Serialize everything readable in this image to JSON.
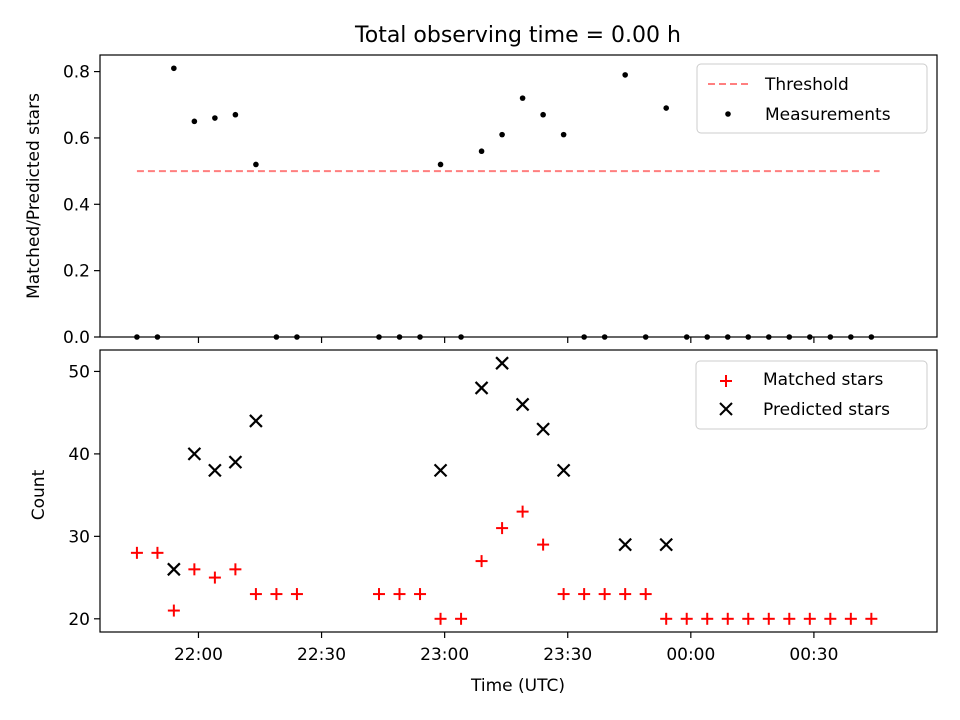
{
  "chart_data": [
    {
      "type": "scatter",
      "title": "Total observing time = 0.00 h",
      "ylabel": "Matched/Predicted stars",
      "ylim": [
        0,
        0.85
      ],
      "yticks": [
        "0.0",
        "0.2",
        "0.4",
        "0.6",
        "0.8"
      ],
      "xlim": [
        "21:36",
        "01:00"
      ],
      "legend": {
        "placement": "top-right",
        "entries": [
          "Threshold",
          "Measurements"
        ]
      },
      "colors": {
        "threshold": "#ff7f7f",
        "measurements": "#000000"
      },
      "threshold": {
        "name": "Threshold",
        "y": 0.5,
        "x_start": "21:45",
        "x_end": "00:46"
      },
      "series": [
        {
          "name": "Measurements",
          "marker": "dot",
          "points": [
            {
              "x": "21:45",
              "y": 0.0
            },
            {
              "x": "21:50",
              "y": 0.0
            },
            {
              "x": "21:54",
              "y": 0.81
            },
            {
              "x": "21:59",
              "y": 0.65
            },
            {
              "x": "22:04",
              "y": 0.66
            },
            {
              "x": "22:09",
              "y": 0.67
            },
            {
              "x": "22:14",
              "y": 0.52
            },
            {
              "x": "22:19",
              "y": 0.0
            },
            {
              "x": "22:24",
              "y": 0.0
            },
            {
              "x": "22:44",
              "y": 0.0
            },
            {
              "x": "22:49",
              "y": 0.0
            },
            {
              "x": "22:54",
              "y": 0.0
            },
            {
              "x": "22:59",
              "y": 0.52
            },
            {
              "x": "23:04",
              "y": 0.0
            },
            {
              "x": "23:09",
              "y": 0.56
            },
            {
              "x": "23:14",
              "y": 0.61
            },
            {
              "x": "23:19",
              "y": 0.72
            },
            {
              "x": "23:24",
              "y": 0.67
            },
            {
              "x": "23:29",
              "y": 0.61
            },
            {
              "x": "23:34",
              "y": 0.0
            },
            {
              "x": "23:39",
              "y": 0.0
            },
            {
              "x": "23:44",
              "y": 0.79
            },
            {
              "x": "23:49",
              "y": 0.0
            },
            {
              "x": "23:54",
              "y": 0.69
            },
            {
              "x": "23:59",
              "y": 0.0
            },
            {
              "x": "00:04",
              "y": 0.0
            },
            {
              "x": "00:09",
              "y": 0.0
            },
            {
              "x": "00:14",
              "y": 0.0
            },
            {
              "x": "00:19",
              "y": 0.0
            },
            {
              "x": "00:24",
              "y": 0.0
            },
            {
              "x": "00:29",
              "y": 0.0
            },
            {
              "x": "00:34",
              "y": 0.0
            },
            {
              "x": "00:39",
              "y": 0.0
            },
            {
              "x": "00:44",
              "y": 0.0
            }
          ]
        }
      ]
    },
    {
      "type": "scatter",
      "xlabel": "Time (UTC)",
      "ylabel": "Count",
      "ylim": [
        18.4,
        52.6
      ],
      "yticks": [
        "20",
        "30",
        "40",
        "50"
      ],
      "xlim": [
        "21:36",
        "01:00"
      ],
      "xticks": [
        "22:00",
        "22:30",
        "23:00",
        "23:30",
        "00:00",
        "00:30"
      ],
      "legend": {
        "placement": "top-right",
        "entries": [
          "Matched stars",
          "Predicted stars"
        ]
      },
      "colors": {
        "matched": "#ff0000",
        "predicted": "#000000"
      },
      "series": [
        {
          "name": "Matched stars",
          "marker": "plus",
          "points": [
            {
              "x": "21:45",
              "y": 28
            },
            {
              "x": "21:50",
              "y": 28
            },
            {
              "x": "21:54",
              "y": 21
            },
            {
              "x": "21:59",
              "y": 26
            },
            {
              "x": "22:04",
              "y": 25
            },
            {
              "x": "22:09",
              "y": 26
            },
            {
              "x": "22:14",
              "y": 23
            },
            {
              "x": "22:19",
              "y": 23
            },
            {
              "x": "22:24",
              "y": 23
            },
            {
              "x": "22:44",
              "y": 23
            },
            {
              "x": "22:49",
              "y": 23
            },
            {
              "x": "22:54",
              "y": 23
            },
            {
              "x": "22:59",
              "y": 20
            },
            {
              "x": "23:04",
              "y": 20
            },
            {
              "x": "23:09",
              "y": 27
            },
            {
              "x": "23:14",
              "y": 31
            },
            {
              "x": "23:19",
              "y": 33
            },
            {
              "x": "23:24",
              "y": 29
            },
            {
              "x": "23:29",
              "y": 23
            },
            {
              "x": "23:34",
              "y": 23
            },
            {
              "x": "23:39",
              "y": 23
            },
            {
              "x": "23:44",
              "y": 23
            },
            {
              "x": "23:49",
              "y": 23
            },
            {
              "x": "23:54",
              "y": 20
            },
            {
              "x": "23:59",
              "y": 20
            },
            {
              "x": "00:04",
              "y": 20
            },
            {
              "x": "00:09",
              "y": 20
            },
            {
              "x": "00:14",
              "y": 20
            },
            {
              "x": "00:19",
              "y": 20
            },
            {
              "x": "00:24",
              "y": 20
            },
            {
              "x": "00:29",
              "y": 20
            },
            {
              "x": "00:34",
              "y": 20
            },
            {
              "x": "00:39",
              "y": 20
            },
            {
              "x": "00:44",
              "y": 20
            }
          ]
        },
        {
          "name": "Predicted stars",
          "marker": "x",
          "points": [
            {
              "x": "21:54",
              "y": 26
            },
            {
              "x": "21:59",
              "y": 40
            },
            {
              "x": "22:04",
              "y": 38
            },
            {
              "x": "22:09",
              "y": 39
            },
            {
              "x": "22:14",
              "y": 44
            },
            {
              "x": "22:59",
              "y": 38
            },
            {
              "x": "23:09",
              "y": 48
            },
            {
              "x": "23:14",
              "y": 51
            },
            {
              "x": "23:19",
              "y": 46
            },
            {
              "x": "23:24",
              "y": 43
            },
            {
              "x": "23:29",
              "y": 38
            },
            {
              "x": "23:44",
              "y": 29
            },
            {
              "x": "23:54",
              "y": 29
            }
          ]
        }
      ]
    }
  ]
}
